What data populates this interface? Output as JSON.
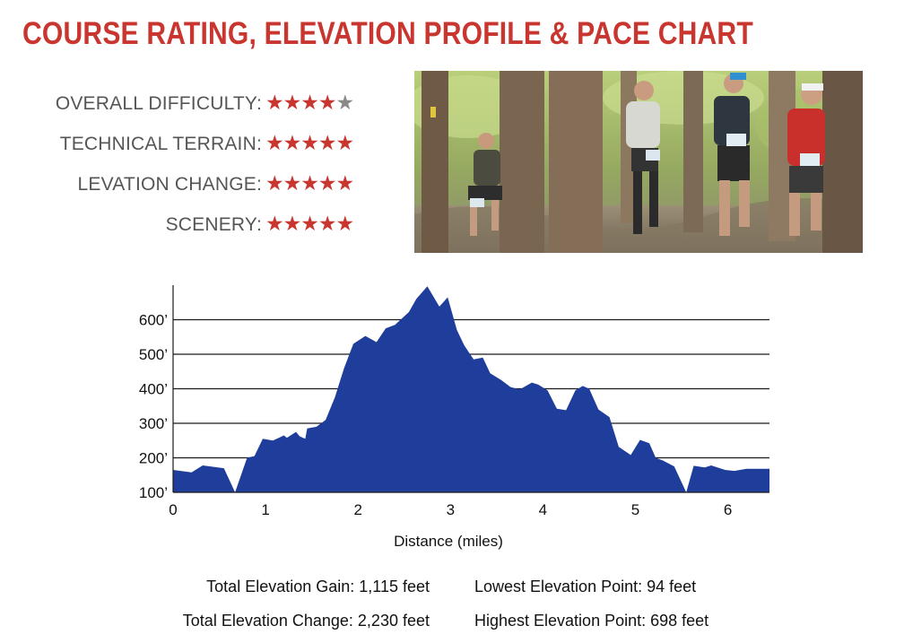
{
  "title": "COURSE RATING, ELEVATION PROFILE & PACE CHART",
  "ratings": [
    {
      "label": "OVERALL DIFFICULTY:",
      "stars": 4,
      "max": 5
    },
    {
      "label": "TECHNICAL TERRAIN:",
      "stars": 5,
      "max": 5
    },
    {
      "label": "LEVATION CHANGE:",
      "stars": 5,
      "max": 5
    },
    {
      "label": "SCENERY:",
      "stars": 5,
      "max": 5
    }
  ],
  "colors": {
    "accent": "#c8362f",
    "profile_fill": "#1f3d9a",
    "star_off": "#8a8a8a"
  },
  "chart_data": {
    "type": "area",
    "xlabel": "Distance (miles)",
    "ylabel": "",
    "xlim": [
      0,
      6.45
    ],
    "ylim": [
      100,
      700
    ],
    "x_ticks": [
      0,
      1,
      2,
      3,
      4,
      5,
      6
    ],
    "y_ticks": [
      100,
      200,
      300,
      400,
      500,
      600
    ],
    "y_tick_labels": [
      "100’",
      "200’",
      "300’",
      "400’",
      "500’",
      "600’"
    ],
    "grid": "horizontal",
    "series": [
      {
        "x": [
          0,
          0.2,
          0.32,
          0.55,
          0.67,
          0.8,
          0.88,
          0.97,
          1.08,
          1.2,
          1.23,
          1.33,
          1.37,
          1.43,
          1.45,
          1.55,
          1.65,
          1.75,
          1.85,
          1.95,
          2.08,
          2.2,
          2.3,
          2.4,
          2.55,
          2.63,
          2.75,
          2.88,
          2.97,
          3.07,
          3.15,
          3.25,
          3.35,
          3.43,
          3.55,
          3.65,
          3.75,
          3.88,
          3.95,
          4.05,
          4.15,
          4.25,
          4.35,
          4.43,
          4.5,
          4.6,
          4.72,
          4.82,
          4.95,
          5.05,
          5.15,
          5.22,
          5.3,
          5.42,
          5.55,
          5.63,
          5.75,
          5.82,
          5.97,
          6.07,
          6.2,
          6.45
        ],
        "y": [
          165,
          158,
          178,
          170,
          100,
          200,
          205,
          255,
          250,
          265,
          258,
          275,
          262,
          255,
          285,
          290,
          310,
          375,
          460,
          530,
          553,
          535,
          575,
          585,
          622,
          660,
          697,
          638,
          665,
          570,
          525,
          485,
          490,
          445,
          425,
          405,
          398,
          418,
          412,
          395,
          342,
          338,
          395,
          408,
          400,
          340,
          318,
          232,
          208,
          252,
          242,
          200,
          192,
          175,
          100,
          177,
          172,
          178,
          165,
          162,
          168,
          168
        ]
      }
    ]
  },
  "stats": {
    "total_gain": "Total Elevation Gain: 1,115 feet",
    "total_change": "Total Elevation Change: 2,230 feet",
    "lowest": "Lowest Elevation Point: 94 feet",
    "highest": "Highest Elevation Point: 698 feet"
  }
}
